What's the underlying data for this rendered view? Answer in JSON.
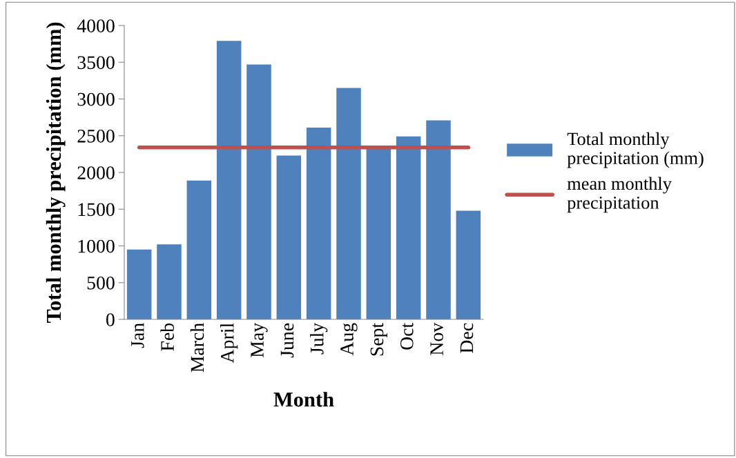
{
  "chart_data": {
    "type": "bar",
    "xlabel": "Month",
    "ylabel": "Total monthly precipitation (mm)",
    "categories": [
      "Jan",
      "Feb",
      "March",
      "April",
      "May",
      "June",
      "July",
      "Aug",
      "Sept",
      "Oct",
      "Nov",
      "Dec"
    ],
    "series": [
      {
        "name": "Total monthly precipitation (mm)",
        "color": "#4f81bd",
        "values": [
          950,
          1020,
          1890,
          3790,
          3470,
          2230,
          2610,
          3150,
          2330,
          2490,
          2710,
          1480
        ]
      },
      {
        "name": "mean monthly precipitation",
        "type": "line",
        "color": "#c0504d",
        "values": [
          2340,
          2340,
          2340,
          2340,
          2340,
          2340,
          2340,
          2340,
          2340,
          2340,
          2340,
          2340
        ]
      }
    ],
    "ylim": [
      0,
      4000
    ],
    "yticks": [
      0,
      500,
      1000,
      1500,
      2000,
      2500,
      3000,
      3500,
      4000
    ],
    "grid": false,
    "legend": "right",
    "marker": "none"
  }
}
